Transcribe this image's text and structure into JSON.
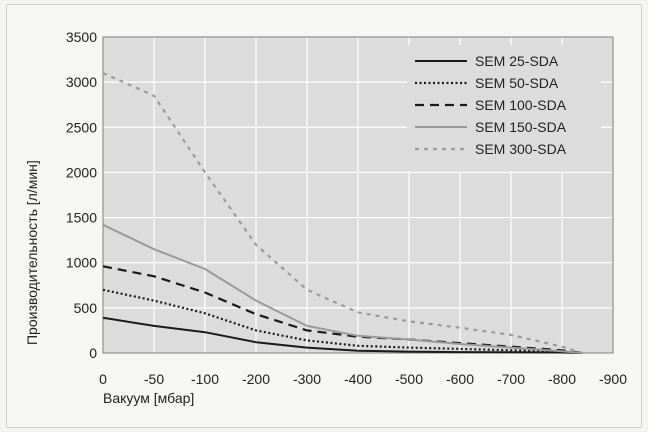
{
  "chart_data": {
    "type": "line",
    "title": "",
    "xlabel": "Вакуум [мбар]",
    "ylabel": "Производительность [л/мин]",
    "xlim": [
      0,
      -900
    ],
    "ylim": [
      0,
      3500
    ],
    "x_ticks": [
      "0",
      "-50",
      "-100",
      "-200",
      "-300",
      "-400",
      "-500",
      "-600",
      "-700",
      "-800",
      "-900"
    ],
    "y_ticks": [
      "0",
      "500",
      "1000",
      "1500",
      "2000",
      "2500",
      "3000",
      "3500"
    ],
    "grid": true,
    "legend_position": "top-right",
    "series": [
      {
        "name": "SEM 25-SDA",
        "color": "#1a1a1a",
        "style": "solid",
        "x": [
          0,
          -50,
          -100,
          -200,
          -300,
          -400,
          -500,
          -600,
          -700,
          -800,
          -840
        ],
        "y": [
          390,
          300,
          230,
          120,
          60,
          25,
          15,
          10,
          8,
          5,
          0
        ]
      },
      {
        "name": "SEM 50-SDA",
        "color": "#1a1a1a",
        "style": "dotted",
        "x": [
          0,
          -50,
          -100,
          -200,
          -300,
          -400,
          -500,
          -600,
          -700,
          -800,
          -840
        ],
        "y": [
          700,
          580,
          440,
          250,
          140,
          80,
          60,
          45,
          30,
          15,
          0
        ]
      },
      {
        "name": "SEM 100-SDA",
        "color": "#1a1a1a",
        "style": "dashed",
        "x": [
          0,
          -50,
          -100,
          -200,
          -300,
          -400,
          -500,
          -600,
          -700,
          -800,
          -840
        ],
        "y": [
          960,
          850,
          670,
          430,
          250,
          180,
          150,
          110,
          70,
          30,
          0
        ]
      },
      {
        "name": "SEM 150-SDA",
        "color": "#9a9a9a",
        "style": "solid",
        "x": [
          0,
          -50,
          -100,
          -200,
          -300,
          -400,
          -500,
          -600,
          -700,
          -800,
          -840
        ],
        "y": [
          1420,
          1150,
          930,
          580,
          300,
          190,
          150,
          100,
          60,
          20,
          0
        ]
      },
      {
        "name": "SEM 300-SDA",
        "color": "#9a9a9a",
        "style": "dotted",
        "x": [
          0,
          -50,
          -100,
          -200,
          -300,
          -400,
          -500,
          -600,
          -700,
          -800,
          -840
        ],
        "y": [
          3100,
          2850,
          2000,
          1200,
          700,
          450,
          350,
          280,
          200,
          70,
          0
        ]
      }
    ]
  }
}
